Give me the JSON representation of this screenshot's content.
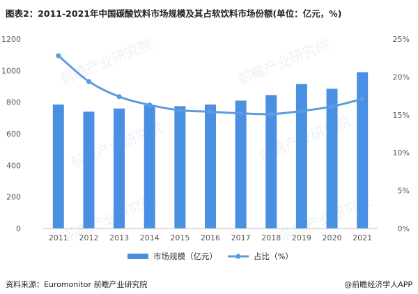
{
  "header": {
    "title": "图表2：2011-2021年中国碳酸饮料市场规模及其占软饮料市场份额(单位：亿元，%)"
  },
  "footer": {
    "source": "资料来源：Euromonitor 前瞻产业研究院",
    "brand": "@前瞻经济学人APP"
  },
  "watermark": {
    "text": "前瞻产业研究院"
  },
  "colors": {
    "bar": "#4A90E2",
    "line": "#5B9BE0"
  },
  "chart_data": {
    "type": "bar",
    "title": "图表2：2011-2021年中国碳酸饮料市场规模及其占软饮料市场份额(单位：亿元，%)",
    "categories": [
      "2011",
      "2012",
      "2013",
      "2014",
      "2015",
      "2016",
      "2017",
      "2018",
      "2019",
      "2020",
      "2021"
    ],
    "series": [
      {
        "name": "市场规模（亿元）",
        "type": "bar",
        "axis": "left",
        "values": [
          785,
          740,
          760,
          780,
          775,
          785,
          810,
          845,
          915,
          885,
          990
        ]
      },
      {
        "name": "占比（%）",
        "type": "line",
        "axis": "right",
        "values": [
          22.8,
          19.4,
          17.4,
          16.3,
          15.6,
          15.4,
          15.2,
          15.1,
          15.5,
          16.1,
          17.1
        ]
      }
    ],
    "y_left": {
      "range": [
        0,
        1200
      ],
      "ticks": [
        "0",
        "200",
        "400",
        "600",
        "800",
        "1000",
        "1200"
      ]
    },
    "y_right": {
      "range": [
        0,
        25
      ],
      "ticks": [
        "0%",
        "5%",
        "10%",
        "15%",
        "20%",
        "25%"
      ]
    },
    "grid": false,
    "legend": {
      "position": "bottom"
    }
  }
}
